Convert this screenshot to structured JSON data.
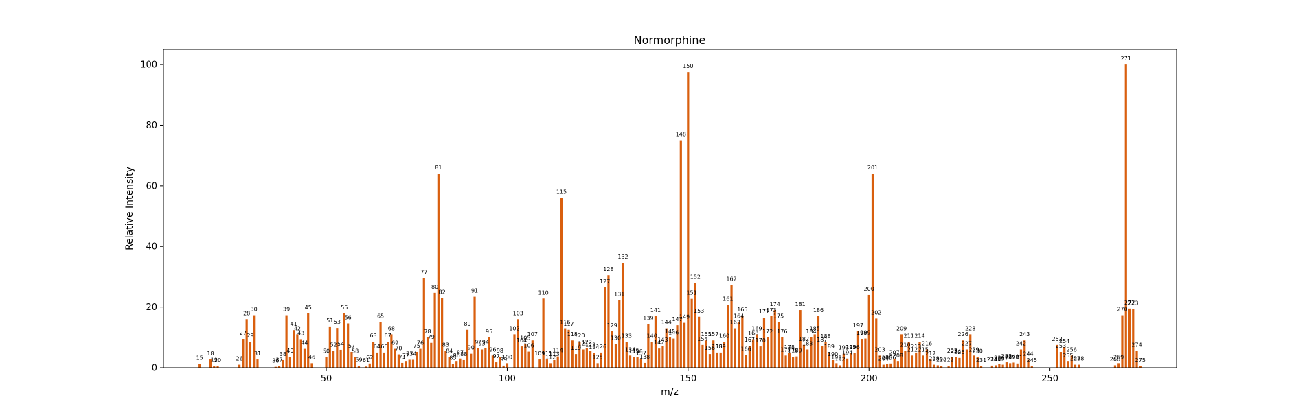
{
  "chart_data": {
    "type": "bar",
    "title": "Normorphine",
    "xlabel": "m/z",
    "ylabel": "Relative Intensity",
    "xlim": [
      5,
      285
    ],
    "ylim": [
      0,
      105
    ],
    "xticks": [
      50,
      100,
      150,
      200,
      250
    ],
    "yticks": [
      0,
      20,
      40,
      60,
      80,
      100
    ],
    "grid": false,
    "legend": "none",
    "bar_color": "#d95f0e",
    "peaks": [
      {
        "mz": 15,
        "intensity": 1.2
      },
      {
        "mz": 18,
        "intensity": 2.7
      },
      {
        "mz": 19,
        "intensity": 0.6
      },
      {
        "mz": 20,
        "intensity": 0.5
      },
      {
        "mz": 26,
        "intensity": 1.0
      },
      {
        "mz": 27,
        "intensity": 9.5
      },
      {
        "mz": 28,
        "intensity": 16.0
      },
      {
        "mz": 29,
        "intensity": 8.6
      },
      {
        "mz": 30,
        "intensity": 17.3
      },
      {
        "mz": 31,
        "intensity": 2.7
      },
      {
        "mz": 36,
        "intensity": 0.3
      },
      {
        "mz": 37,
        "intensity": 0.6
      },
      {
        "mz": 38,
        "intensity": 2.5
      },
      {
        "mz": 39,
        "intensity": 17.3
      },
      {
        "mz": 40,
        "intensity": 3.6
      },
      {
        "mz": 41,
        "intensity": 12.4
      },
      {
        "mz": 42,
        "intensity": 11.0
      },
      {
        "mz": 43,
        "intensity": 9.4
      },
      {
        "mz": 44,
        "intensity": 6.2
      },
      {
        "mz": 45,
        "intensity": 17.9
      },
      {
        "mz": 46,
        "intensity": 1.5
      },
      {
        "mz": 50,
        "intensity": 3.5
      },
      {
        "mz": 51,
        "intensity": 13.6
      },
      {
        "mz": 52,
        "intensity": 5.6
      },
      {
        "mz": 53,
        "intensity": 13.1
      },
      {
        "mz": 54,
        "intensity": 5.9
      },
      {
        "mz": 55,
        "intensity": 17.9
      },
      {
        "mz": 56,
        "intensity": 14.6
      },
      {
        "mz": 57,
        "intensity": 5.2
      },
      {
        "mz": 58,
        "intensity": 3.5
      },
      {
        "mz": 59,
        "intensity": 0.6
      },
      {
        "mz": 61,
        "intensity": 0.4
      },
      {
        "mz": 62,
        "intensity": 1.4
      },
      {
        "mz": 63,
        "intensity": 8.6
      },
      {
        "mz": 64,
        "intensity": 5.0
      },
      {
        "mz": 65,
        "intensity": 15.0
      },
      {
        "mz": 66,
        "intensity": 5.0
      },
      {
        "mz": 67,
        "intensity": 8.6
      },
      {
        "mz": 68,
        "intensity": 11.0
      },
      {
        "mz": 69,
        "intensity": 6.2
      },
      {
        "mz": 70,
        "intensity": 4.4
      },
      {
        "mz": 71,
        "intensity": 1.6
      },
      {
        "mz": 72,
        "intensity": 2.0
      },
      {
        "mz": 73,
        "intensity": 2.6
      },
      {
        "mz": 74,
        "intensity": 2.6
      },
      {
        "mz": 75,
        "intensity": 5.2
      },
      {
        "mz": 76,
        "intensity": 6.2
      },
      {
        "mz": 77,
        "intensity": 29.5
      },
      {
        "mz": 78,
        "intensity": 10.0
      },
      {
        "mz": 79,
        "intensity": 8.2
      },
      {
        "mz": 80,
        "intensity": 24.7
      },
      {
        "mz": 81,
        "intensity": 64.0
      },
      {
        "mz": 82,
        "intensity": 23.0
      },
      {
        "mz": 83,
        "intensity": 5.5
      },
      {
        "mz": 84,
        "intensity": 3.5
      },
      {
        "mz": 85,
        "intensity": 1.2
      },
      {
        "mz": 86,
        "intensity": 2.0
      },
      {
        "mz": 87,
        "intensity": 3.0
      },
      {
        "mz": 88,
        "intensity": 2.5
      },
      {
        "mz": 89,
        "intensity": 12.5
      },
      {
        "mz": 90,
        "intensity": 4.6
      },
      {
        "mz": 91,
        "intensity": 23.4
      },
      {
        "mz": 92,
        "intensity": 6.5
      },
      {
        "mz": 93,
        "intensity": 6.0
      },
      {
        "mz": 94,
        "intensity": 6.5
      },
      {
        "mz": 95,
        "intensity": 10.0
      },
      {
        "mz": 96,
        "intensity": 4.0
      },
      {
        "mz": 97,
        "intensity": 1.8
      },
      {
        "mz": 98,
        "intensity": 3.6
      },
      {
        "mz": 99,
        "intensity": 0.7
      },
      {
        "mz": 100,
        "intensity": 1.5
      },
      {
        "mz": 102,
        "intensity": 11.0
      },
      {
        "mz": 103,
        "intensity": 16.0
      },
      {
        "mz": 104,
        "intensity": 7.0
      },
      {
        "mz": 105,
        "intensity": 7.8
      },
      {
        "mz": 106,
        "intensity": 5.3
      },
      {
        "mz": 107,
        "intensity": 9.0
      },
      {
        "mz": 109,
        "intensity": 2.7
      },
      {
        "mz": 110,
        "intensity": 22.8
      },
      {
        "mz": 111,
        "intensity": 2.7
      },
      {
        "mz": 112,
        "intensity": 1.5
      },
      {
        "mz": 113,
        "intensity": 2.5
      },
      {
        "mz": 114,
        "intensity": 3.7
      },
      {
        "mz": 115,
        "intensity": 56.0
      },
      {
        "mz": 116,
        "intensity": 13.0
      },
      {
        "mz": 117,
        "intensity": 12.5
      },
      {
        "mz": 118,
        "intensity": 9.0
      },
      {
        "mz": 119,
        "intensity": 4.5
      },
      {
        "mz": 120,
        "intensity": 8.6
      },
      {
        "mz": 121,
        "intensity": 6.0
      },
      {
        "mz": 122,
        "intensity": 6.5
      },
      {
        "mz": 123,
        "intensity": 5.5
      },
      {
        "mz": 124,
        "intensity": 4.8
      },
      {
        "mz": 125,
        "intensity": 1.5
      },
      {
        "mz": 126,
        "intensity": 5.0
      },
      {
        "mz": 127,
        "intensity": 26.5
      },
      {
        "mz": 128,
        "intensity": 30.5
      },
      {
        "mz": 129,
        "intensity": 12.0
      },
      {
        "mz": 130,
        "intensity": 7.8
      },
      {
        "mz": 131,
        "intensity": 22.3
      },
      {
        "mz": 132,
        "intensity": 34.6
      },
      {
        "mz": 133,
        "intensity": 8.5
      },
      {
        "mz": 134,
        "intensity": 4.0
      },
      {
        "mz": 135,
        "intensity": 3.5
      },
      {
        "mz": 136,
        "intensity": 3.4
      },
      {
        "mz": 137,
        "intensity": 2.8
      },
      {
        "mz": 138,
        "intensity": 1.6
      },
      {
        "mz": 139,
        "intensity": 14.4
      },
      {
        "mz": 140,
        "intensity": 8.5
      },
      {
        "mz": 141,
        "intensity": 17.0
      },
      {
        "mz": 142,
        "intensity": 6.3
      },
      {
        "mz": 143,
        "intensity": 7.2
      },
      {
        "mz": 144,
        "intensity": 13.0
      },
      {
        "mz": 145,
        "intensity": 10.0
      },
      {
        "mz": 146,
        "intensity": 9.6
      },
      {
        "mz": 147,
        "intensity": 14.0
      },
      {
        "mz": 148,
        "intensity": 75.0
      },
      {
        "mz": 149,
        "intensity": 14.8
      },
      {
        "mz": 150,
        "intensity": 97.5
      },
      {
        "mz": 151,
        "intensity": 22.7
      },
      {
        "mz": 152,
        "intensity": 28.0
      },
      {
        "mz": 153,
        "intensity": 16.8
      },
      {
        "mz": 154,
        "intensity": 7.5
      },
      {
        "mz": 155,
        "intensity": 9.0
      },
      {
        "mz": 156,
        "intensity": 4.5
      },
      {
        "mz": 157,
        "intensity": 9.0
      },
      {
        "mz": 158,
        "intensity": 5.0
      },
      {
        "mz": 159,
        "intensity": 5.0
      },
      {
        "mz": 160,
        "intensity": 8.5
      },
      {
        "mz": 161,
        "intensity": 20.7
      },
      {
        "mz": 162,
        "intensity": 27.3
      },
      {
        "mz": 163,
        "intensity": 13.0
      },
      {
        "mz": 164,
        "intensity": 15.0
      },
      {
        "mz": 165,
        "intensity": 17.2
      },
      {
        "mz": 166,
        "intensity": 4.2
      },
      {
        "mz": 167,
        "intensity": 7.2
      },
      {
        "mz": 168,
        "intensity": 9.4
      },
      {
        "mz": 169,
        "intensity": 11.0
      },
      {
        "mz": 170,
        "intensity": 7.0
      },
      {
        "mz": 171,
        "intensity": 16.5
      },
      {
        "mz": 172,
        "intensity": 10.0
      },
      {
        "mz": 173,
        "intensity": 17.0
      },
      {
        "mz": 174,
        "intensity": 19.0
      },
      {
        "mz": 175,
        "intensity": 15.0
      },
      {
        "mz": 176,
        "intensity": 10.0
      },
      {
        "mz": 177,
        "intensity": 4.0
      },
      {
        "mz": 178,
        "intensity": 4.8
      },
      {
        "mz": 179,
        "intensity": 3.5
      },
      {
        "mz": 180,
        "intensity": 3.7
      },
      {
        "mz": 181,
        "intensity": 19.0
      },
      {
        "mz": 182,
        "intensity": 7.5
      },
      {
        "mz": 183,
        "intensity": 6.0
      },
      {
        "mz": 184,
        "intensity": 10.0
      },
      {
        "mz": 185,
        "intensity": 11.0
      },
      {
        "mz": 186,
        "intensity": 17.0
      },
      {
        "mz": 187,
        "intensity": 7.2
      },
      {
        "mz": 188,
        "intensity": 8.4
      },
      {
        "mz": 189,
        "intensity": 5.0
      },
      {
        "mz": 190,
        "intensity": 2.5
      },
      {
        "mz": 191,
        "intensity": 1.5
      },
      {
        "mz": 192,
        "intensity": 0.8
      },
      {
        "mz": 193,
        "intensity": 4.6
      },
      {
        "mz": 194,
        "intensity": 3.0
      },
      {
        "mz": 195,
        "intensity": 4.8
      },
      {
        "mz": 196,
        "intensity": 4.8
      },
      {
        "mz": 197,
        "intensity": 12.0
      },
      {
        "mz": 198,
        "intensity": 9.5
      },
      {
        "mz": 199,
        "intensity": 9.6
      },
      {
        "mz": 200,
        "intensity": 24.0
      },
      {
        "mz": 201,
        "intensity": 64.0
      },
      {
        "mz": 202,
        "intensity": 16.2
      },
      {
        "mz": 203,
        "intensity": 4.0
      },
      {
        "mz": 204,
        "intensity": 1.0
      },
      {
        "mz": 205,
        "intensity": 1.2
      },
      {
        "mz": 206,
        "intensity": 1.4
      },
      {
        "mz": 207,
        "intensity": 3.0
      },
      {
        "mz": 208,
        "intensity": 2.0
      },
      {
        "mz": 209,
        "intensity": 11.0
      },
      {
        "mz": 210,
        "intensity": 5.6
      },
      {
        "mz": 211,
        "intensity": 8.5
      },
      {
        "mz": 212,
        "intensity": 4.0
      },
      {
        "mz": 213,
        "intensity": 5.0
      },
      {
        "mz": 214,
        "intensity": 8.5
      },
      {
        "mz": 215,
        "intensity": 4.0
      },
      {
        "mz": 216,
        "intensity": 6.0
      },
      {
        "mz": 217,
        "intensity": 2.7
      },
      {
        "mz": 218,
        "intensity": 1.0
      },
      {
        "mz": 219,
        "intensity": 0.8
      },
      {
        "mz": 220,
        "intensity": 0.6
      },
      {
        "mz": 222,
        "intensity": 0.6
      },
      {
        "mz": 223,
        "intensity": 3.6
      },
      {
        "mz": 224,
        "intensity": 3.4
      },
      {
        "mz": 225,
        "intensity": 3.2
      },
      {
        "mz": 226,
        "intensity": 9.0
      },
      {
        "mz": 227,
        "intensity": 6.0
      },
      {
        "mz": 228,
        "intensity": 11.0
      },
      {
        "mz": 229,
        "intensity": 4.0
      },
      {
        "mz": 230,
        "intensity": 3.5
      },
      {
        "mz": 231,
        "intensity": 0.5
      },
      {
        "mz": 234,
        "intensity": 0.7
      },
      {
        "mz": 235,
        "intensity": 0.8
      },
      {
        "mz": 236,
        "intensity": 1.2
      },
      {
        "mz": 237,
        "intensity": 1.0
      },
      {
        "mz": 238,
        "intensity": 1.8
      },
      {
        "mz": 239,
        "intensity": 1.5
      },
      {
        "mz": 240,
        "intensity": 1.7
      },
      {
        "mz": 241,
        "intensity": 1.4
      },
      {
        "mz": 242,
        "intensity": 6.0
      },
      {
        "mz": 243,
        "intensity": 9.0
      },
      {
        "mz": 244,
        "intensity": 2.6
      },
      {
        "mz": 245,
        "intensity": 0.5
      },
      {
        "mz": 252,
        "intensity": 7.5
      },
      {
        "mz": 253,
        "intensity": 5.2
      },
      {
        "mz": 254,
        "intensity": 6.8
      },
      {
        "mz": 255,
        "intensity": 2.0
      },
      {
        "mz": 256,
        "intensity": 4.0
      },
      {
        "mz": 257,
        "intensity": 1.0
      },
      {
        "mz": 258,
        "intensity": 1.0
      },
      {
        "mz": 268,
        "intensity": 0.8
      },
      {
        "mz": 269,
        "intensity": 1.5
      },
      {
        "mz": 270,
        "intensity": 17.3
      },
      {
        "mz": 271,
        "intensity": 100.0
      },
      {
        "mz": 272,
        "intensity": 19.5
      },
      {
        "mz": 273,
        "intensity": 19.4
      },
      {
        "mz": 274,
        "intensity": 5.5
      },
      {
        "mz": 275,
        "intensity": 0.5
      }
    ]
  }
}
